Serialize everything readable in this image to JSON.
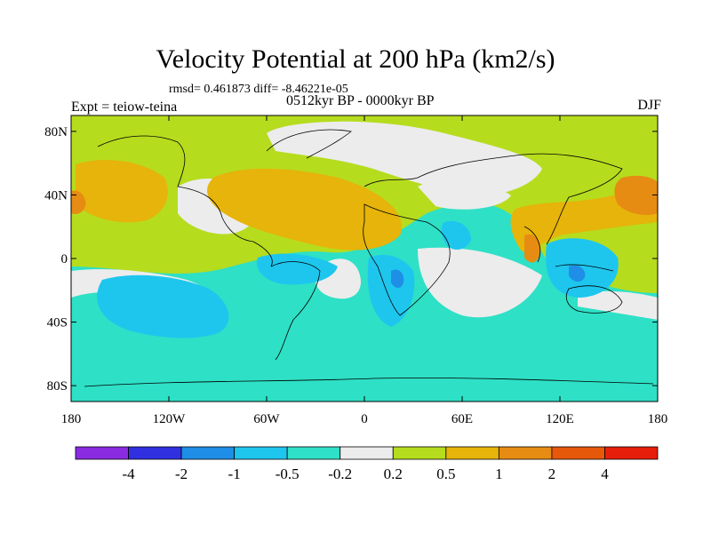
{
  "title": "Velocity Potential at 200 hPa (km2/s)",
  "stats_line": "rmsd= 0.461873  diff= -8.46221e-05",
  "experiment": "Expt = teiow-teina",
  "period": "0512kyr BP - 0000kyr BP",
  "season": "DJF",
  "lat_ticks": [
    {
      "label": "80N",
      "value": 80
    },
    {
      "label": "40N",
      "value": 40
    },
    {
      "label": "0",
      "value": 0
    },
    {
      "label": "40S",
      "value": -40
    },
    {
      "label": "80S",
      "value": -80
    }
  ],
  "lon_ticks": [
    {
      "label": "180",
      "value": -180
    },
    {
      "label": "120W",
      "value": -120
    },
    {
      "label": "60W",
      "value": -60
    },
    {
      "label": "0",
      "value": 0
    },
    {
      "label": "60E",
      "value": 60
    },
    {
      "label": "120E",
      "value": 120
    },
    {
      "label": "180",
      "value": 180
    }
  ],
  "colorbar": {
    "colors": [
      "#8a2be2",
      "#3030e0",
      "#1e8ee6",
      "#1ec6ee",
      "#2ee0c6",
      "#ececec",
      "#b6dc1e",
      "#e6b40a",
      "#e68c12",
      "#e6580a",
      "#e61e0a"
    ],
    "labels": [
      "-4",
      "-2",
      "-1",
      "-0.5",
      "-0.2",
      "0.2",
      "0.5",
      "1",
      "2",
      "4"
    ]
  }
}
